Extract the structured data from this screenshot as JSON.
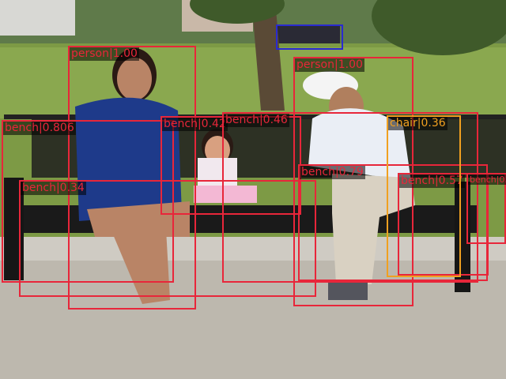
{
  "colors": {
    "person": "#e8263a",
    "bench": "#e8263a",
    "chair": "#f0a020",
    "car": "#2a2ad0"
  },
  "detections": [
    {
      "label": "person|1.00",
      "cls": "person"
    },
    {
      "label": "person|1.00",
      "cls": "person"
    },
    {
      "label": "bench|0.806",
      "cls": "bench"
    },
    {
      "label": "bench|0.42",
      "cls": "bench"
    },
    {
      "label": "bench|0.46",
      "cls": "bench"
    },
    {
      "label": "bench|0.34",
      "cls": "bench"
    },
    {
      "label": "bench|0.79",
      "cls": "bench"
    },
    {
      "label": "bench|0.57",
      "cls": "bench"
    },
    {
      "label": "bench|0.84",
      "cls": "bench"
    },
    {
      "label": "chair|0.36",
      "cls": "chair"
    },
    {
      "label": "",
      "cls": "car"
    }
  ]
}
